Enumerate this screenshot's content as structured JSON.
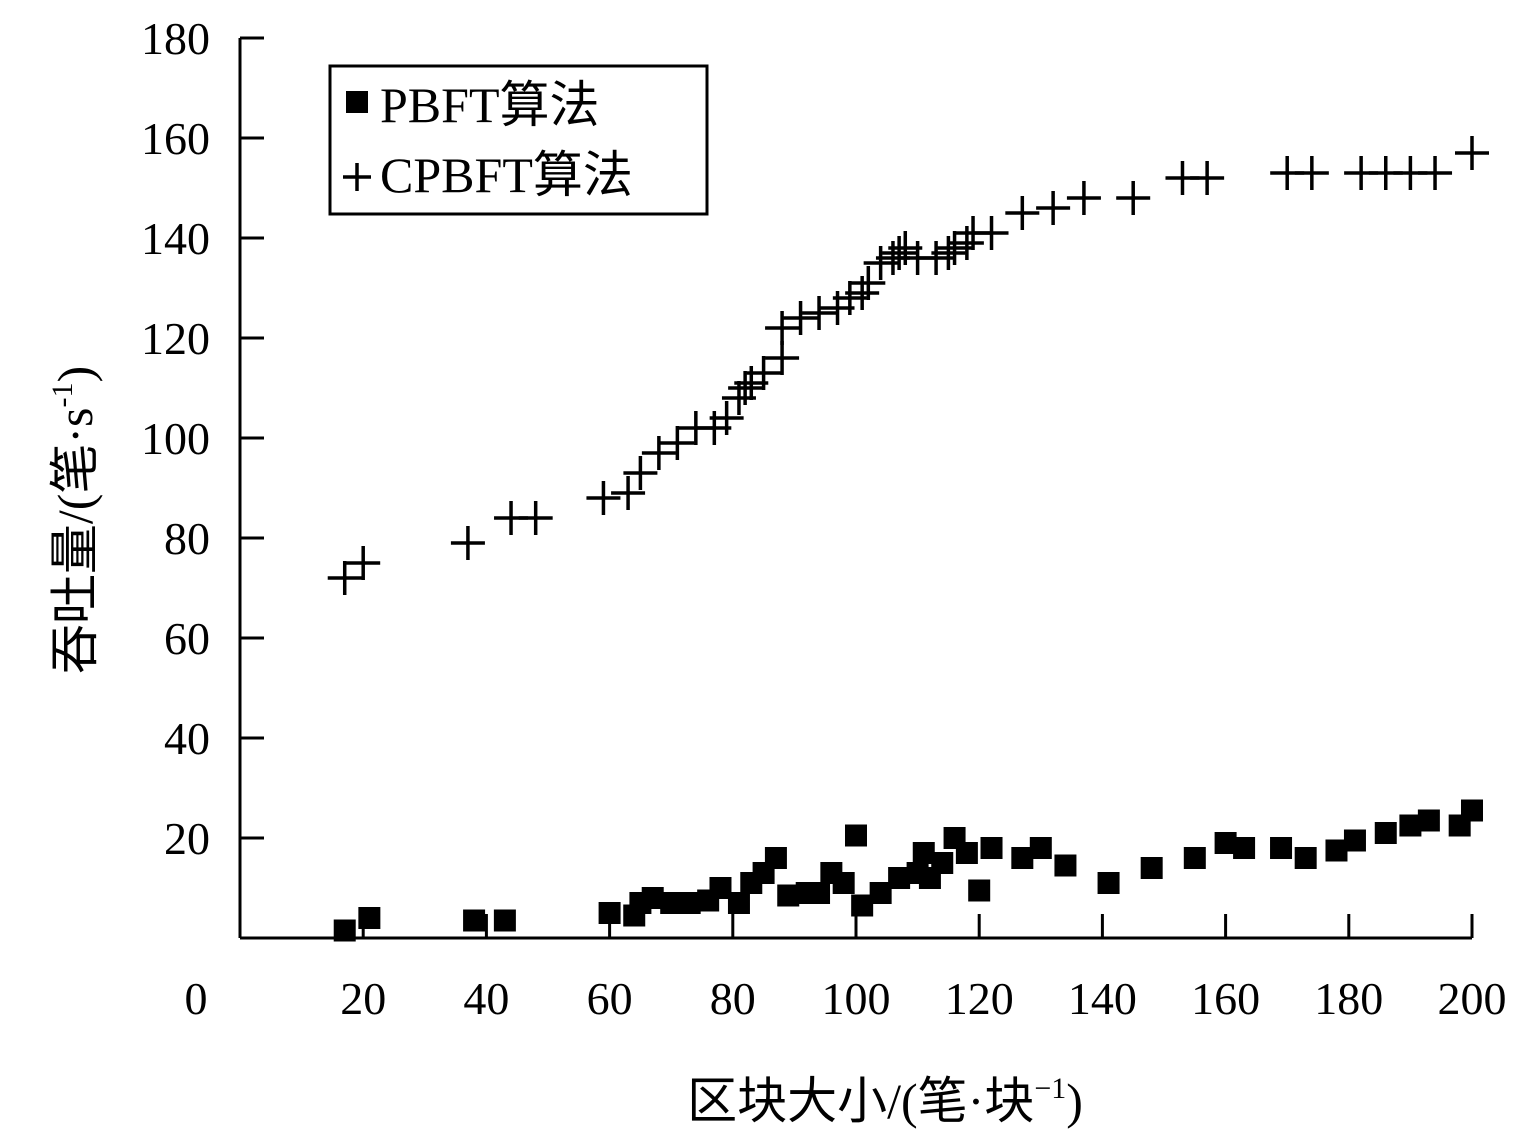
{
  "chart_data": {
    "type": "scatter",
    "title": "",
    "xlabel": "区块大小/(笔·块",
    "xlabel_sup": "−1",
    "xlabel_close": ")",
    "ylabel": "吞吐量/(笔·s",
    "ylabel_sup": "-1",
    "ylabel_close": ")",
    "xlim": [
      0,
      200
    ],
    "ylim": [
      0,
      180
    ],
    "x_origin_label": "0",
    "xticks": [
      20,
      40,
      60,
      80,
      100,
      120,
      140,
      160,
      180,
      200
    ],
    "xtick_labels": [
      "20",
      "40",
      "60",
      "80",
      "100",
      "120",
      "140",
      "160",
      "180",
      "200"
    ],
    "yticks": [
      20,
      40,
      60,
      80,
      100,
      120,
      140,
      160,
      180
    ],
    "ytick_labels": [
      "20",
      "40",
      "60",
      "80",
      "100",
      "120",
      "140",
      "160",
      "180"
    ],
    "grid": false,
    "legend_position": "top-left",
    "series": [
      {
        "name": "PBFT算法",
        "marker": "square",
        "color": "#000000",
        "points": [
          [
            17,
            1.5
          ],
          [
            21,
            4
          ],
          [
            38,
            3.5
          ],
          [
            43,
            3.5
          ],
          [
            60,
            5
          ],
          [
            64,
            4.5
          ],
          [
            65,
            7
          ],
          [
            67,
            8
          ],
          [
            70,
            7
          ],
          [
            73,
            7
          ],
          [
            76,
            7.5
          ],
          [
            78,
            10
          ],
          [
            81,
            7
          ],
          [
            83,
            11
          ],
          [
            85,
            13
          ],
          [
            87,
            16
          ],
          [
            89,
            8.5
          ],
          [
            92,
            9
          ],
          [
            94,
            9
          ],
          [
            96,
            13
          ],
          [
            98,
            11
          ],
          [
            100,
            20.5
          ],
          [
            101,
            6.5
          ],
          [
            104,
            9
          ],
          [
            107,
            12
          ],
          [
            110,
            13
          ],
          [
            111,
            17
          ],
          [
            112,
            12
          ],
          [
            114,
            15
          ],
          [
            116,
            20
          ],
          [
            118,
            17
          ],
          [
            120,
            9.5
          ],
          [
            122,
            18
          ],
          [
            127,
            16
          ],
          [
            130,
            18
          ],
          [
            134,
            14.5
          ],
          [
            141,
            11
          ],
          [
            148,
            14
          ],
          [
            155,
            16
          ],
          [
            160,
            19
          ],
          [
            163,
            18
          ],
          [
            169,
            18
          ],
          [
            173,
            16
          ],
          [
            178,
            17.5
          ],
          [
            181,
            19.5
          ],
          [
            186,
            21
          ],
          [
            190,
            22.5
          ],
          [
            193,
            23.5
          ],
          [
            198,
            22.5
          ],
          [
            200,
            25.5
          ]
        ]
      },
      {
        "name": "CPBFT算法",
        "marker": "plus",
        "color": "#000000",
        "points": [
          [
            17,
            72
          ],
          [
            20,
            75
          ],
          [
            37,
            79
          ],
          [
            44,
            84
          ],
          [
            48,
            84
          ],
          [
            59,
            88
          ],
          [
            63,
            89
          ],
          [
            65,
            93
          ],
          [
            68,
            97
          ],
          [
            71,
            99
          ],
          [
            74,
            102
          ],
          [
            77,
            102
          ],
          [
            79,
            104
          ],
          [
            81,
            108
          ],
          [
            82,
            110
          ],
          [
            83,
            111
          ],
          [
            85,
            113
          ],
          [
            88,
            116
          ],
          [
            88,
            122
          ],
          [
            91,
            124
          ],
          [
            94,
            125
          ],
          [
            97,
            126
          ],
          [
            99,
            128
          ],
          [
            101,
            129
          ],
          [
            102,
            131
          ],
          [
            104,
            135
          ],
          [
            106,
            136
          ],
          [
            107,
            137
          ],
          [
            108,
            138
          ],
          [
            110,
            136
          ],
          [
            113,
            136
          ],
          [
            115,
            137
          ],
          [
            116,
            138
          ],
          [
            118,
            139
          ],
          [
            119,
            141
          ],
          [
            122,
            141
          ],
          [
            127,
            145
          ],
          [
            132,
            146
          ],
          [
            137,
            148
          ],
          [
            145,
            148
          ],
          [
            153,
            152
          ],
          [
            157,
            152
          ],
          [
            170,
            153
          ],
          [
            174,
            153
          ],
          [
            182,
            153
          ],
          [
            186,
            153
          ],
          [
            190,
            153
          ],
          [
            194,
            153
          ],
          [
            200,
            157
          ]
        ]
      }
    ]
  }
}
